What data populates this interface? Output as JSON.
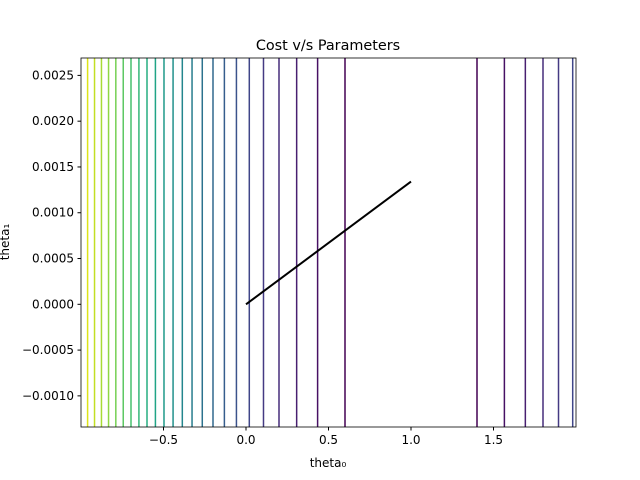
{
  "chart_data": {
    "type": "contour",
    "title": "Cost v/s Parameters",
    "x_label": "theta₀",
    "y_label": "theta₁",
    "xlim": [
      -1.0,
      2.0
    ],
    "ylim": [
      -0.00134,
      0.00269
    ],
    "xticks": [
      {
        "value": -0.5,
        "label": "−0.5"
      },
      {
        "value": 0,
        "label": "0.0"
      },
      {
        "value": 0.5,
        "label": "0.5"
      },
      {
        "value": 1.0,
        "label": "1.0"
      },
      {
        "value": 1.5,
        "label": "1.5"
      }
    ],
    "yticks": [
      {
        "value": -0.001,
        "label": "−0.0010"
      },
      {
        "value": -0.0005,
        "label": "−0.0005"
      },
      {
        "value": 0,
        "label": "0.0000"
      },
      {
        "value": 0.0005,
        "label": "0.0005"
      },
      {
        "value": 0.001,
        "label": "0.0010"
      },
      {
        "value": 0.0015,
        "label": "0.0015"
      },
      {
        "value": 0.002,
        "label": "0.0020"
      },
      {
        "value": 0.0025,
        "label": "0.0025"
      }
    ],
    "contour_lines": [
      {
        "color": "#440154",
        "x": [
          0.6,
          1.4
        ]
      },
      {
        "color": "#471164",
        "x": [
          0.434,
          1.566
        ]
      },
      {
        "color": "#481f70",
        "x": [
          0.307,
          1.693
        ]
      },
      {
        "color": "#472d7b",
        "x": [
          0.2,
          1.8
        ]
      },
      {
        "color": "#443a83",
        "x": [
          0.106,
          1.894
        ]
      },
      {
        "color": "#404688",
        "x": [
          0.02,
          1.98
        ]
      },
      {
        "color": "#3b528b",
        "x": [
          -0.058
        ]
      },
      {
        "color": "#365d8d",
        "x": [
          -0.131
        ]
      },
      {
        "color": "#31688e",
        "x": [
          -0.2
        ]
      },
      {
        "color": "#2c728e",
        "x": [
          -0.265
        ]
      },
      {
        "color": "#287d8e",
        "x": [
          -0.327
        ]
      },
      {
        "color": "#24868e",
        "x": [
          -0.386
        ]
      },
      {
        "color": "#21918c",
        "x": [
          -0.442
        ]
      },
      {
        "color": "#1f9a8a",
        "x": [
          -0.497
        ]
      },
      {
        "color": "#20a486",
        "x": [
          -0.549
        ]
      },
      {
        "color": "#27ad81",
        "x": [
          -0.6
        ]
      },
      {
        "color": "#35b779",
        "x": [
          -0.649
        ]
      },
      {
        "color": "#47c16e",
        "x": [
          -0.697
        ]
      },
      {
        "color": "#5dc863",
        "x": [
          -0.744
        ]
      },
      {
        "color": "#75d054",
        "x": [
          -0.789
        ]
      },
      {
        "color": "#8fd744",
        "x": [
          -0.833
        ]
      },
      {
        "color": "#a8db34",
        "x": [
          -0.876
        ]
      },
      {
        "color": "#c2df23",
        "x": [
          -0.918
        ]
      },
      {
        "color": "#dde318",
        "x": [
          -0.96
        ]
      }
    ],
    "path": {
      "color": "#000000",
      "x": [
        0,
        1.0
      ],
      "values": [
        0,
        0.00134
      ]
    }
  }
}
